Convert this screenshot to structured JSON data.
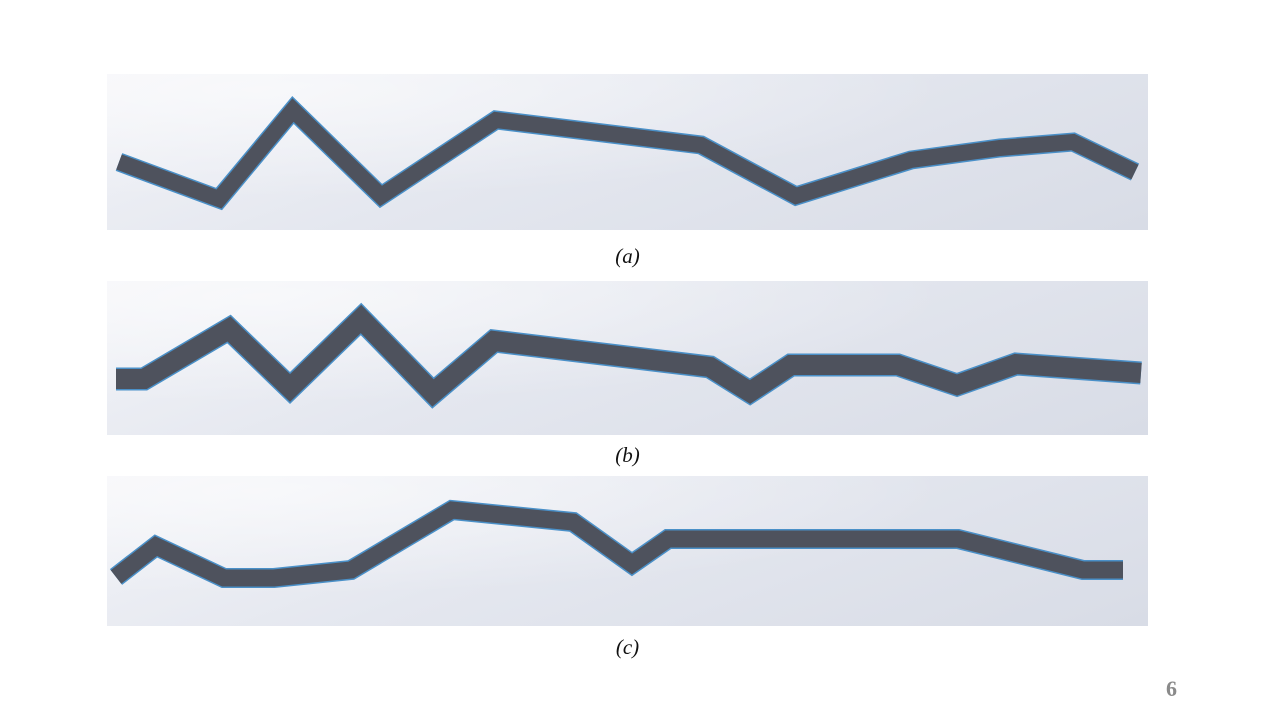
{
  "figure": {
    "panels": [
      {
        "caption": "(a)"
      },
      {
        "caption": "(b)"
      },
      {
        "caption": "(c)"
      }
    ]
  },
  "colors": {
    "strip": "#4e525d",
    "strip_edge": "#4a90c8",
    "panel_background": "#e4e7ef",
    "caption": "#111111",
    "page_number": "#8a8a8a"
  },
  "page_number": "6"
}
